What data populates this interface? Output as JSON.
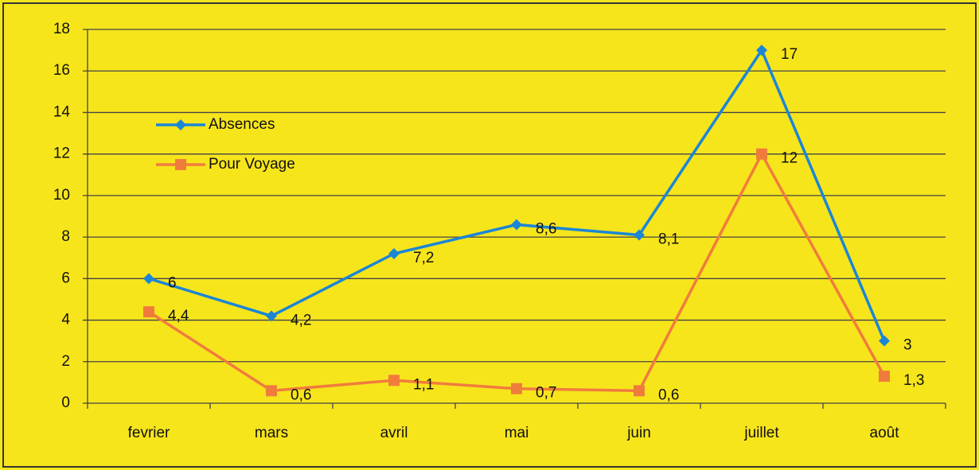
{
  "chart_data": {
    "type": "line",
    "categories": [
      "fevrier",
      "mars",
      "avril",
      "mai",
      "juin",
      "juillet",
      "août"
    ],
    "series": [
      {
        "name": "Absences",
        "color": "#1b86d6",
        "marker": "diamond",
        "values": [
          6,
          4.2,
          7.2,
          8.6,
          8.1,
          17,
          3
        ],
        "value_labels": [
          "6",
          "4,2",
          "7,2",
          "8,6",
          "8,1",
          "17",
          "3"
        ]
      },
      {
        "name": "Pour Voyage",
        "color": "#f07c3c",
        "marker": "square",
        "values": [
          4.4,
          0.6,
          1.1,
          0.7,
          0.6,
          12,
          1.3
        ],
        "value_labels": [
          "4,4",
          "0,6",
          "1,1",
          "0,7",
          "0,6",
          "12",
          "1,3"
        ]
      }
    ],
    "ylim": [
      0,
      18
    ],
    "yticks": [
      0,
      2,
      4,
      6,
      8,
      10,
      12,
      14,
      16,
      18
    ],
    "grid": true
  }
}
